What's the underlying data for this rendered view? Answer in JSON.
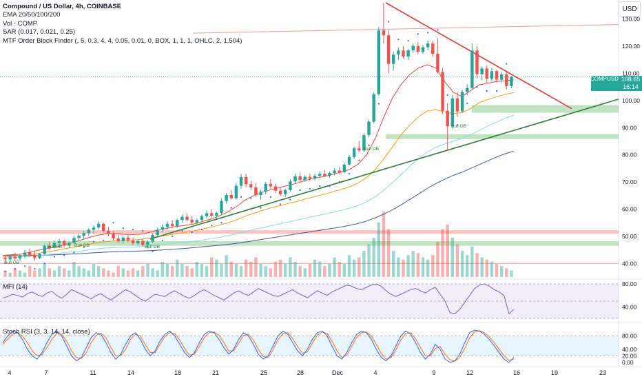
{
  "legend": {
    "title": "Compound / US Dollar, 4h, COINBASE",
    "ema": "EMA 20/50/100/200",
    "vol": "Vol · COMP",
    "sar": "SAR (0.017, 0.021, 0.25)",
    "mtf": "MTF Order Block Finder (, 5, 0.3, 4, 4, 0.05, 0.01, 0, BOX, 1, 1, 1, OHLC, 2, 1.504)"
  },
  "currency_button": "USD",
  "price_tag": {
    "symbol": "COMPUSD",
    "price": "108.65",
    "countdown": "16:14"
  },
  "panes": {
    "mfi": "MFI (14)",
    "stoch": "Stoch RSI (3, 3, 14, 14, close)"
  },
  "ob_labels": [
    "Bull OB",
    "Bull OB",
    "Bull OB",
    "Bull OB",
    "Bull OB",
    "Bull OB"
  ],
  "colors": {
    "up": "#26a69a",
    "down": "#ef5350",
    "ema20": "#f44336",
    "ema50": "#ff9800",
    "ema100": "#80deea",
    "ema200": "#3f51b5",
    "sar": "#2962ff",
    "trend_red": "#e53935",
    "trend_green": "#2e7d32",
    "mfi": "#7e57c2",
    "stoch_k": "#2962ff",
    "stoch_d": "#ff6d00"
  },
  "chart_data": {
    "type": "candlestick",
    "price_axis": {
      "ticks": [
        130,
        120,
        110,
        100,
        90,
        80,
        70,
        60,
        50,
        40
      ],
      "ylim": [
        35,
        136
      ]
    },
    "x_axis": {
      "ticks": [
        "4",
        "7",
        "11",
        "14",
        "18",
        "21",
        "25",
        "28",
        "Dec",
        "4",
        "9",
        "12",
        "16",
        "19",
        "23"
      ]
    },
    "mfi_axis": {
      "ticks": [
        80,
        40
      ],
      "levels": [
        80,
        50,
        20
      ]
    },
    "stoch_axis": {
      "ticks": [
        80,
        40,
        20,
        0
      ],
      "levels": [
        80,
        20
      ]
    },
    "price_levels": {
      "red_line_1": 128,
      "red_line_2": 40.0
    },
    "zones": [
      {
        "kind": "bearish",
        "from": 50.9,
        "to": 52.2
      },
      {
        "kind": "bullish",
        "from": 46.5,
        "to": 48.2
      },
      {
        "kind": "bullish",
        "from": 95.5,
        "to": 98.3
      },
      {
        "kind": "bullish",
        "from": 85.8,
        "to": 87.6
      }
    ],
    "candles": [
      [
        42,
        43,
        40,
        41.5
      ],
      [
        41.5,
        43,
        40.5,
        42.5
      ],
      [
        42.5,
        44,
        41,
        41.8
      ],
      [
        41.8,
        43.5,
        40.8,
        43
      ],
      [
        43,
        45,
        42,
        44
      ],
      [
        44,
        45.5,
        42.5,
        43.2
      ],
      [
        43.2,
        44.5,
        41,
        42
      ],
      [
        42,
        43.8,
        41.5,
        43.5
      ],
      [
        43.5,
        47,
        43,
        46.5
      ],
      [
        46.5,
        48,
        45,
        45.8
      ],
      [
        45.8,
        48.5,
        45.5,
        47.5
      ],
      [
        47.5,
        49,
        46.5,
        48.2
      ],
      [
        48.2,
        48.8,
        46,
        46.6
      ],
      [
        46.6,
        48,
        45.8,
        47.6
      ],
      [
        47.6,
        50,
        47,
        49.4
      ],
      [
        49.4,
        51,
        48.5,
        50.2
      ],
      [
        50.2,
        52,
        49,
        51.2
      ],
      [
        51.2,
        53,
        50,
        52.4
      ],
      [
        52.4,
        54,
        51,
        53.2
      ],
      [
        53.2,
        55.5,
        52.5,
        54.6
      ],
      [
        54.6,
        55,
        51.5,
        52
      ],
      [
        52,
        53.5,
        50,
        50.8
      ],
      [
        50.8,
        52,
        48.5,
        49.2
      ],
      [
        49.2,
        50.5,
        47.5,
        48.2
      ],
      [
        48.2,
        50,
        47.5,
        49.5
      ],
      [
        49.5,
        50.5,
        47.8,
        48.4
      ],
      [
        48.4,
        49.5,
        46.8,
        47.4
      ],
      [
        47.4,
        48.8,
        46.5,
        48.3
      ],
      [
        48.3,
        49,
        46.2,
        46.8
      ],
      [
        46.8,
        48.5,
        45.5,
        48
      ],
      [
        48,
        51,
        47.5,
        50.5
      ],
      [
        50.5,
        53,
        50,
        52.4
      ],
      [
        52.4,
        54.5,
        51.5,
        53.4
      ],
      [
        53.4,
        55.5,
        52.5,
        54.6
      ],
      [
        54.6,
        56,
        53,
        53.8
      ],
      [
        53.8,
        56.5,
        53,
        56
      ],
      [
        56,
        58,
        55,
        57.2
      ],
      [
        57.2,
        58.5,
        55.5,
        56.1
      ],
      [
        56.1,
        57.5,
        54.5,
        55.1
      ],
      [
        55.1,
        56.5,
        54,
        56
      ],
      [
        56,
        58,
        55.5,
        57.4
      ],
      [
        57.4,
        59.5,
        56.5,
        58.5
      ],
      [
        58.5,
        60,
        57,
        57.6
      ],
      [
        57.6,
        59,
        56.5,
        58.6
      ],
      [
        58.6,
        64,
        58,
        63
      ],
      [
        63,
        66,
        62,
        65.2
      ],
      [
        65.2,
        67,
        63.5,
        64
      ],
      [
        64,
        69.5,
        63.5,
        68.6
      ],
      [
        68.6,
        73,
        67.5,
        71.8
      ],
      [
        71.8,
        73,
        68,
        69.2
      ],
      [
        69.2,
        70.5,
        67,
        68
      ],
      [
        68,
        69.5,
        64.5,
        65.2
      ],
      [
        65.2,
        67,
        63.5,
        66.4
      ],
      [
        66.4,
        70,
        65.5,
        69.3
      ],
      [
        69.3,
        71,
        67.5,
        68.4
      ],
      [
        68.4,
        69.5,
        66,
        66.8
      ],
      [
        66.8,
        68,
        64.8,
        65.5
      ],
      [
        65.5,
        67.5,
        64.5,
        67
      ],
      [
        67,
        71,
        66.5,
        70.2
      ],
      [
        70.2,
        73,
        69.5,
        72.1
      ],
      [
        72.1,
        73.5,
        70,
        70.8
      ],
      [
        70.8,
        72.5,
        70,
        71.9
      ],
      [
        71.9,
        73,
        70.5,
        71.2
      ],
      [
        71.2,
        72.8,
        70.5,
        72.3
      ],
      [
        72.3,
        74,
        71.5,
        73
      ],
      [
        73,
        74.5,
        71.8,
        72.2
      ],
      [
        72.2,
        73.8,
        71.5,
        73.3
      ],
      [
        73.3,
        75,
        72.5,
        74.2
      ],
      [
        74.2,
        75.5,
        73,
        73.6
      ],
      [
        73.6,
        77,
        73.3,
        76.4
      ],
      [
        76.4,
        80,
        76,
        79.2
      ],
      [
        79.2,
        83,
        78.5,
        82.4
      ],
      [
        82.4,
        85,
        81,
        81.6
      ],
      [
        81.6,
        88,
        81,
        87.3
      ],
      [
        87.3,
        93,
        86.5,
        92.2
      ],
      [
        92.2,
        103,
        91.5,
        102.3
      ],
      [
        102.3,
        127,
        101.8,
        125.8
      ],
      [
        125.8,
        136,
        121,
        124
      ],
      [
        124,
        126,
        110,
        113.5
      ],
      [
        113.5,
        118,
        111,
        116.9
      ],
      [
        116.9,
        119.5,
        115,
        118.4
      ],
      [
        118.4,
        120,
        115.5,
        116.2
      ],
      [
        116.2,
        119,
        115,
        118.5
      ],
      [
        118.5,
        121,
        117.5,
        120.1
      ],
      [
        120.1,
        121.5,
        117,
        118
      ],
      [
        118,
        120.5,
        117.2,
        119.6
      ],
      [
        119.6,
        122,
        118.5,
        121
      ],
      [
        121,
        122,
        116,
        117.2
      ],
      [
        117.2,
        123,
        110,
        110.5
      ],
      [
        110.5,
        112,
        95,
        96.2
      ],
      [
        96.2,
        99,
        81.5,
        90.5
      ],
      [
        90.5,
        102,
        89.5,
        100.8
      ],
      [
        100.8,
        103,
        94,
        96
      ],
      [
        96,
        104,
        95.5,
        103.2
      ],
      [
        103.2,
        106,
        102,
        104.6
      ],
      [
        104.6,
        121,
        104,
        118.4
      ],
      [
        118.4,
        120,
        108,
        109.7
      ],
      [
        109.7,
        112.5,
        107.5,
        111.8
      ],
      [
        111.8,
        113,
        106.5,
        108
      ],
      [
        108,
        112,
        107,
        110.8
      ],
      [
        110.8,
        111.5,
        106.5,
        107.7
      ],
      [
        107.7,
        110.5,
        106.5,
        109.6
      ],
      [
        109.6,
        110.5,
        104,
        105.3
      ],
      [
        105.3,
        109,
        104.5,
        108.65
      ]
    ],
    "ema20": [
      43,
      43.2,
      43.4,
      44,
      44.8,
      45.4,
      46,
      46.8,
      47.6,
      48.6,
      49.6,
      50.4,
      50.9,
      51,
      50.7,
      50.6,
      50.8,
      51.5,
      52.3,
      53,
      53.6,
      54,
      54.5,
      55.4,
      56.3,
      57.5,
      59,
      61,
      63.4,
      65,
      66.3,
      67.2,
      68,
      68.8,
      69.6,
      70.6,
      71.4,
      72,
      72.7,
      73.6,
      74.6,
      76.5,
      80,
      86,
      94,
      101,
      106,
      109.6,
      112,
      113.2,
      112,
      107,
      103,
      101.5,
      103.6,
      105.8,
      106.4,
      107,
      107.3,
      107.6
    ],
    "ema50": [
      42.6,
      42.7,
      42.8,
      43.2,
      43.7,
      44.2,
      44.7,
      45.3,
      45.9,
      46.5,
      47.1,
      47.7,
      48.1,
      48.3,
      48.4,
      48.6,
      48.9,
      49.4,
      49.9,
      50.4,
      50.9,
      51.4,
      51.9,
      52.6,
      53.3,
      54.1,
      55,
      56.1,
      57.4,
      58.5,
      59.6,
      60.5,
      61.3,
      62.1,
      62.9,
      63.8,
      64.6,
      65.4,
      66.3,
      67.2,
      68.2,
      69.6,
      71.6,
      74.6,
      78.6,
      83,
      87.4,
      91,
      94,
      96.2,
      96.6,
      95.8,
      95.2,
      95.5,
      97,
      99.2,
      100.4,
      101.4,
      102.3,
      102.9
    ],
    "ema100": [
      42.3,
      42.3,
      42.4,
      42.6,
      42.9,
      43.2,
      43.5,
      43.9,
      44.3,
      44.6,
      45,
      45.4,
      45.7,
      45.8,
      45.9,
      46,
      46.2,
      46.5,
      46.8,
      47.1,
      47.5,
      47.8,
      48.2,
      48.6,
      49.1,
      49.6,
      50.2,
      50.9,
      51.7,
      52.5,
      53.2,
      53.9,
      54.6,
      55.3,
      56,
      56.7,
      57.4,
      58.1,
      58.8,
      59.5,
      60.3,
      61.3,
      62.7,
      64.6,
      67,
      69.8,
      72.8,
      75.8,
      78.6,
      81,
      82.8,
      84,
      85,
      86,
      87.4,
      89,
      90.6,
      92,
      93.5,
      94.6
    ],
    "ema200": [
      43,
      42.9,
      42.9,
      42.9,
      43,
      43.1,
      43.2,
      43.3,
      43.5,
      43.6,
      43.8,
      44,
      44.2,
      44.3,
      44.4,
      44.5,
      44.6,
      44.7,
      44.9,
      45.1,
      45.3,
      45.5,
      45.8,
      46.1,
      46.4,
      46.7,
      47,
      47.4,
      47.9,
      48.4,
      48.9,
      49.4,
      49.9,
      50.4,
      50.9,
      51.4,
      51.9,
      52.4,
      52.9,
      53.4,
      54,
      54.7,
      55.6,
      56.8,
      58.2,
      59.8,
      61.6,
      63.6,
      65.6,
      67.6,
      69.4,
      71,
      72.4,
      73.6,
      75,
      76.4,
      77.8,
      79.2,
      80.4,
      81.4
    ],
    "volume": [
      3,
      2,
      4,
      3,
      2,
      5,
      3,
      4,
      6,
      4,
      3,
      5,
      4,
      3,
      7,
      5,
      4,
      3,
      6,
      5,
      4,
      3,
      2,
      5,
      4,
      3,
      4,
      3,
      5,
      6,
      4,
      3,
      7,
      6,
      5,
      8,
      6,
      5,
      4,
      7,
      6,
      5,
      9,
      8,
      6,
      10,
      7,
      6,
      5,
      8,
      7,
      9,
      6,
      5,
      4,
      7,
      8,
      6,
      9,
      7,
      5,
      4,
      6,
      8,
      7,
      5,
      6,
      9,
      7,
      6,
      10,
      8,
      9,
      12,
      15,
      18,
      25,
      30,
      22,
      12,
      9,
      8,
      10,
      12,
      11,
      9,
      8,
      10,
      16,
      22,
      24,
      18,
      15,
      12,
      10,
      14,
      11,
      9,
      8,
      7,
      6,
      5,
      4,
      3
    ],
    "mfi": [
      55,
      58,
      62,
      60,
      57,
      63,
      66,
      61,
      58,
      64,
      67,
      60,
      55,
      62,
      70,
      66,
      62,
      58,
      54,
      60,
      63,
      57,
      52,
      58,
      64,
      70,
      66,
      60,
      54,
      50,
      56,
      62,
      60,
      58,
      64,
      68,
      63,
      58,
      55,
      60,
      66,
      70,
      65,
      60,
      56,
      52,
      58,
      64,
      68,
      63,
      60,
      66,
      72,
      68,
      64,
      60,
      58,
      62,
      66,
      70,
      64,
      60,
      56,
      62,
      68,
      64,
      60,
      66,
      70,
      74,
      78,
      76,
      72,
      70,
      74,
      78,
      80,
      76,
      68,
      62,
      58,
      62,
      66,
      70,
      72,
      68,
      64,
      70,
      74,
      62,
      50,
      30,
      28,
      36,
      48,
      60,
      72,
      78,
      80,
      76,
      70,
      66,
      60,
      28,
      36
    ],
    "stoch_k": [
      60,
      80,
      95,
      90,
      70,
      40,
      20,
      10,
      30,
      60,
      85,
      95,
      80,
      50,
      20,
      5,
      15,
      45,
      75,
      90,
      85,
      60,
      30,
      10,
      25,
      55,
      80,
      90,
      70,
      40,
      20,
      35,
      65,
      85,
      95,
      80,
      55,
      30,
      15,
      30,
      60,
      85,
      95,
      90,
      70,
      45,
      25,
      40,
      70,
      90,
      80,
      55,
      25,
      10,
      20,
      50,
      80,
      95,
      85,
      60,
      35,
      20,
      40,
      70,
      90,
      95,
      80,
      50,
      20,
      10,
      30,
      60,
      85,
      95,
      90,
      70,
      40,
      15,
      5,
      20,
      50,
      80,
      95,
      85,
      60,
      30,
      10,
      25,
      55,
      40,
      10,
      0,
      5,
      25,
      60,
      90,
      98,
      95,
      85,
      70,
      50,
      30,
      10,
      0,
      15
    ],
    "stoch_d": [
      55,
      70,
      85,
      90,
      80,
      60,
      35,
      20,
      25,
      45,
      70,
      88,
      85,
      65,
      35,
      15,
      12,
      30,
      60,
      82,
      88,
      75,
      45,
      20,
      20,
      40,
      70,
      85,
      80,
      55,
      30,
      30,
      55,
      78,
      90,
      88,
      68,
      42,
      22,
      25,
      48,
      75,
      90,
      92,
      82,
      60,
      35,
      35,
      58,
      82,
      85,
      68,
      40,
      18,
      15,
      38,
      68,
      88,
      90,
      72,
      48,
      28,
      32,
      58,
      82,
      92,
      88,
      65,
      35,
      15,
      22,
      48,
      75,
      90,
      92,
      80,
      55,
      28,
      10,
      15,
      38,
      68,
      88,
      90,
      72,
      45,
      20,
      20,
      42,
      48,
      25,
      8,
      4,
      15,
      42,
      75,
      92,
      96,
      90,
      78,
      60,
      40,
      20,
      6,
      10
    ]
  }
}
